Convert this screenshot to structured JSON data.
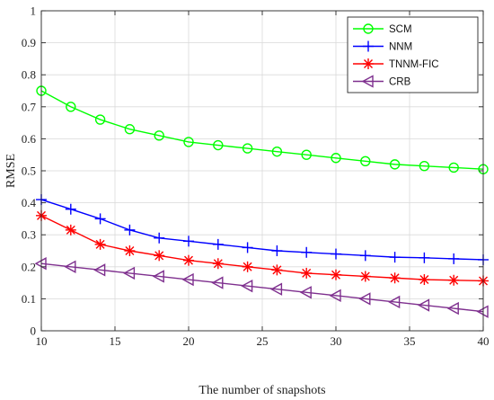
{
  "chart_data": {
    "type": "line",
    "title": "",
    "xlabel": "The number of snapshots",
    "ylabel": "RMSE",
    "xlim": [
      10,
      40
    ],
    "ylim": [
      0,
      1
    ],
    "xticks": [
      10,
      15,
      20,
      25,
      30,
      35,
      40
    ],
    "yticks": [
      0,
      0.1,
      0.2,
      0.3,
      0.4,
      0.5,
      0.6,
      0.7,
      0.8,
      0.9,
      1
    ],
    "x": [
      10,
      12,
      14,
      16,
      18,
      20,
      22,
      24,
      26,
      28,
      30,
      32,
      34,
      36,
      38,
      40
    ],
    "grid": true,
    "legend_position": "top-right",
    "series": [
      {
        "name": "SCM",
        "color": "#00ff00",
        "marker": "circle",
        "values": [
          0.75,
          0.7,
          0.66,
          0.63,
          0.61,
          0.59,
          0.58,
          0.57,
          0.56,
          0.55,
          0.54,
          0.53,
          0.52,
          0.515,
          0.51,
          0.505
        ]
      },
      {
        "name": "NNM",
        "color": "#0000ff",
        "marker": "plus",
        "values": [
          0.41,
          0.38,
          0.35,
          0.315,
          0.29,
          0.28,
          0.27,
          0.26,
          0.25,
          0.245,
          0.24,
          0.235,
          0.23,
          0.228,
          0.225,
          0.222
        ]
      },
      {
        "name": "TNNM-FIC",
        "color": "#ff0000",
        "marker": "asterisk",
        "values": [
          0.36,
          0.315,
          0.27,
          0.25,
          0.235,
          0.22,
          0.21,
          0.2,
          0.19,
          0.18,
          0.175,
          0.17,
          0.165,
          0.16,
          0.158,
          0.156
        ]
      },
      {
        "name": "CRB",
        "color": "#7e2f8e",
        "marker": "triangle-left",
        "values": [
          0.21,
          0.2,
          0.19,
          0.18,
          0.17,
          0.16,
          0.15,
          0.14,
          0.13,
          0.12,
          0.11,
          0.1,
          0.09,
          0.08,
          0.07,
          0.06
        ]
      }
    ]
  }
}
